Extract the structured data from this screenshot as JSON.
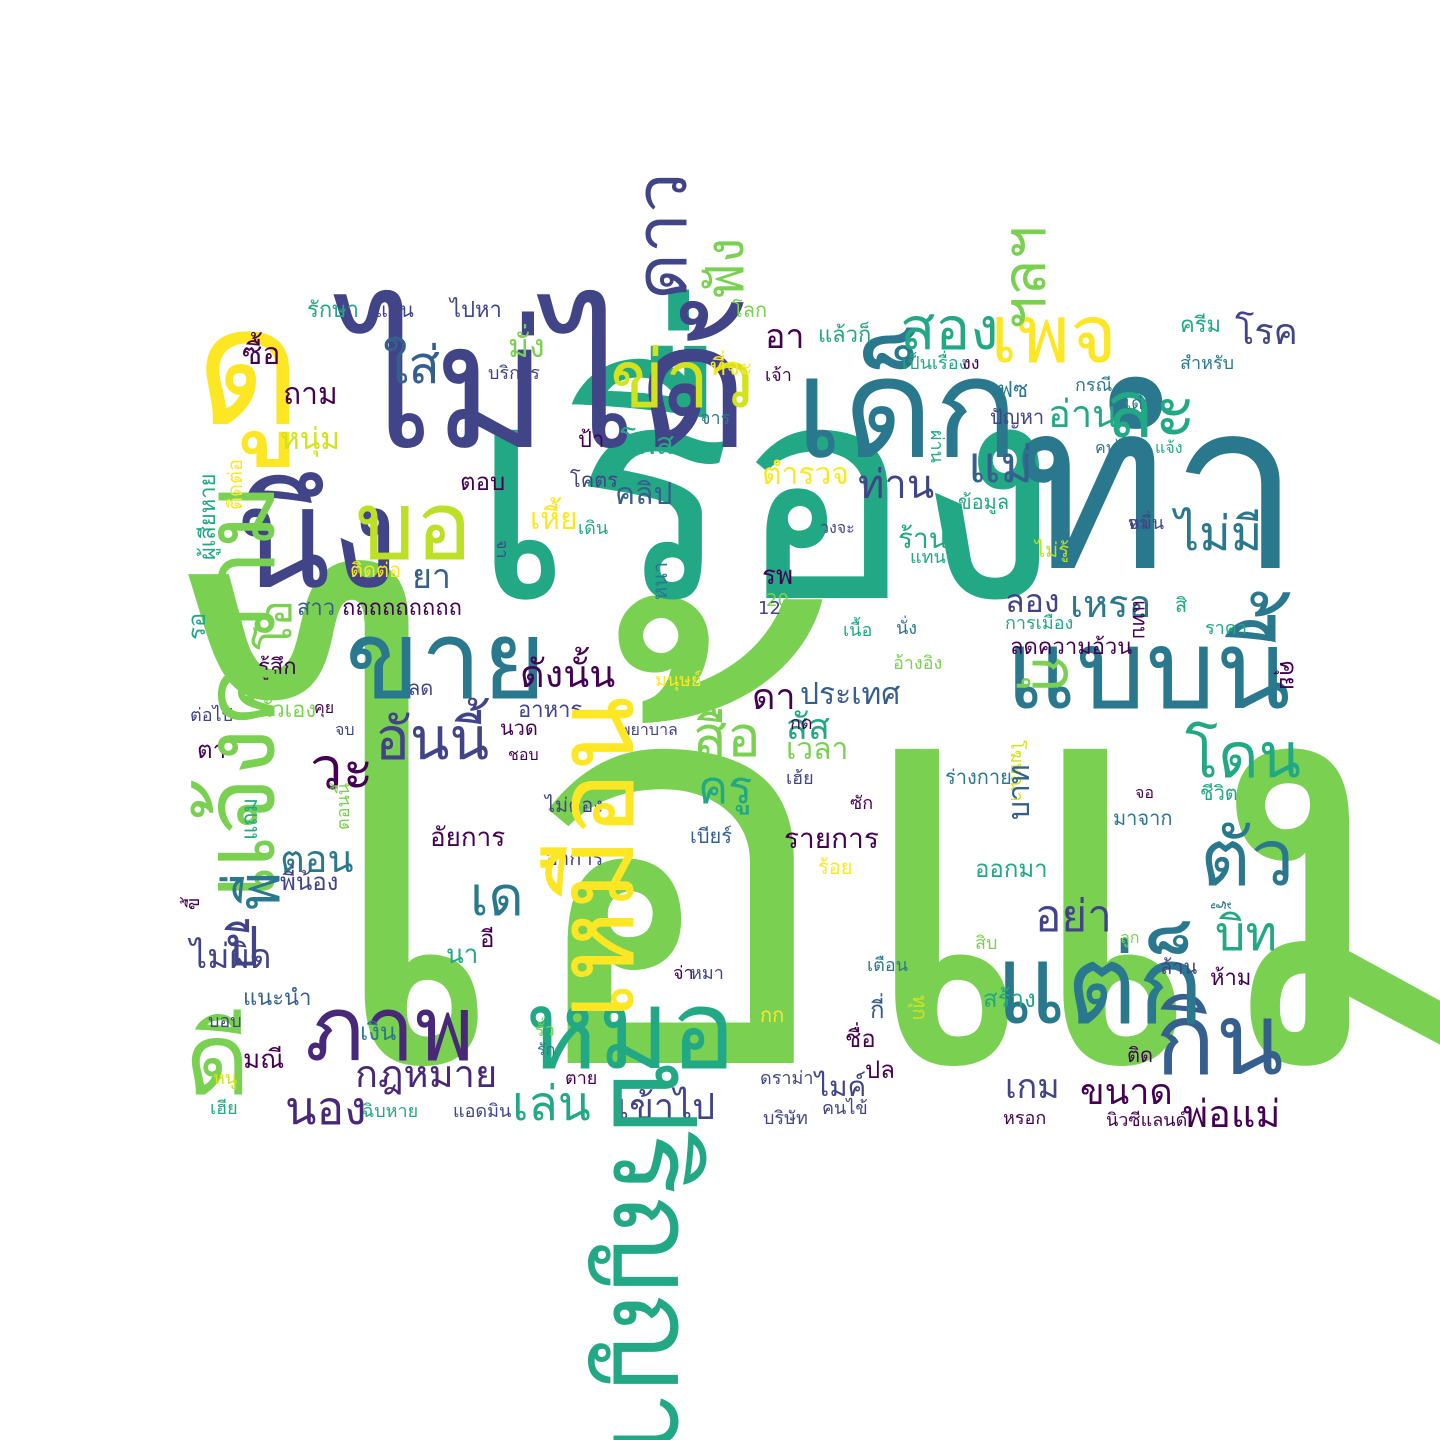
{
  "words": [
    {
      "text": "ไอ้แม่ง",
      "color": "#7ad151"
    },
    {
      "text": "เรื่อง",
      "color": "#22a884"
    },
    {
      "text": "ทำ",
      "color": "#2a788e"
    },
    {
      "text": "ไม่ได้",
      "color": "#414487"
    },
    {
      "text": "ดู",
      "color": "#fde725"
    },
    {
      "text": "เด็ก",
      "color": "#2a788e"
    },
    {
      "text": "นึง",
      "color": "#414487"
    },
    {
      "text": "ละ",
      "color": "#22a884"
    },
    {
      "text": "บอ",
      "color": "#bddf26"
    },
    {
      "text": "ขาย",
      "color": "#2a788e"
    },
    {
      "text": "ข่าว",
      "color": "#d2e21b"
    },
    {
      "text": "เพจ",
      "color": "#fde725"
    },
    {
      "text": "สอง",
      "color": "#22a884"
    },
    {
      "text": "แบบนี้",
      "color": "#2a788e"
    },
    {
      "text": "กิน",
      "color": "#355f8d"
    },
    {
      "text": "แต่ก็",
      "color": "#2a788e"
    },
    {
      "text": "หมอ",
      "color": "#22a884"
    },
    {
      "text": "ภาพ",
      "color": "#482878"
    },
    {
      "text": "ดี",
      "color": "#7ad151"
    },
    {
      "text": "ตัว",
      "color": "#2a788e"
    },
    {
      "text": "โดน",
      "color": "#22a884"
    },
    {
      "text": "สื่อ",
      "color": "#7ad151"
    },
    {
      "text": "ครู",
      "color": "#22a884"
    },
    {
      "text": "วะ",
      "color": "#440154"
    },
    {
      "text": "อันนี้",
      "color": "#414487"
    },
    {
      "text": "ใส่",
      "color": "#355f8d"
    },
    {
      "text": "แม่",
      "color": "#355f8d"
    },
    {
      "text": "ไม่มี",
      "color": "#2a788e"
    },
    {
      "text": "ท่าน",
      "color": "#414487"
    },
    {
      "text": "อ่าน",
      "color": "#22a884"
    },
    {
      "text": "เหรอ",
      "color": "#2a788e"
    },
    {
      "text": "บิท",
      "color": "#22a884"
    },
    {
      "text": "อย่า",
      "color": "#414487"
    },
    {
      "text": "เล่น",
      "color": "#22a884"
    },
    {
      "text": "นอง",
      "color": "#482878"
    },
    {
      "text": "เข้าไป",
      "color": "#414487"
    },
    {
      "text": "พ่อแม่",
      "color": "#440154"
    },
    {
      "text": "กฎหมาย",
      "color": "#482878"
    },
    {
      "text": "ขนาด",
      "color": "#440154"
    },
    {
      "text": "เกม",
      "color": "#414487"
    },
    {
      "text": "เด",
      "color": "#2a788e"
    },
    {
      "text": "ปี",
      "color": "#414487"
    },
    {
      "text": "ตอน",
      "color": "#2a788e"
    },
    {
      "text": "ดังนั้น",
      "color": "#440154"
    },
    {
      "text": "คลิป",
      "color": "#355f8d"
    },
    {
      "text": "ยา",
      "color": "#355f8d"
    },
    {
      "text": "ถาม",
      "color": "#440154"
    },
    {
      "text": "หนุ่ม",
      "color": "#d2e21b"
    },
    {
      "text": "มั่ง",
      "color": "#7ad151"
    },
    {
      "text": "อา",
      "color": "#440154"
    },
    {
      "text": "ตำรวจ",
      "color": "#fde725"
    },
    {
      "text": "ลอง",
      "color": "#414487"
    },
    {
      "text": "สัส",
      "color": "#22a884"
    },
    {
      "text": "ประเทศ",
      "color": "#355f8d"
    },
    {
      "text": "ดา",
      "color": "#440154"
    },
    {
      "text": "เวลา",
      "color": "#7ad151"
    },
    {
      "text": "รายการ",
      "color": "#440154"
    },
    {
      "text": "ซื้อ",
      "color": "#440154"
    },
    {
      "text": "รักษา",
      "color": "#22a884"
    },
    {
      "text": "แสน",
      "color": "#414487"
    },
    {
      "text": "ไปหา",
      "color": "#414487"
    },
    {
      "text": "โลก",
      "color": "#7ad151"
    },
    {
      "text": "แล้วก็",
      "color": "#22a884"
    },
    {
      "text": "ครีม",
      "color": "#22a884"
    },
    {
      "text": "โรค",
      "color": "#414487"
    },
    {
      "text": "สำหรับ",
      "color": "#2a788e"
    },
    {
      "text": "เป็นเรื่อง",
      "color": "#22a884"
    },
    {
      "text": "งง",
      "color": "#440154"
    },
    {
      "text": "บริการ",
      "color": "#414487"
    },
    {
      "text": "ที่จะ",
      "color": "#fde725"
    },
    {
      "text": "เจ้า",
      "color": "#440154"
    },
    {
      "text": "เฟซ",
      "color": "#2a788e"
    },
    {
      "text": "กรณี",
      "color": "#2a788e"
    },
    {
      "text": "ปัญหา",
      "color": "#414487"
    },
    {
      "text": "คนไทย",
      "color": "#2a788e"
    },
    {
      "text": "แจ้ง",
      "color": "#22a884"
    },
    {
      "text": "จาร",
      "color": "#2a788e"
    },
    {
      "text": "ป้า",
      "color": "#440154"
    },
    {
      "text": "โพส",
      "color": "#22a884"
    },
    {
      "text": "ตอบ",
      "color": "#440154"
    },
    {
      "text": "โคตร",
      "color": "#414487"
    },
    {
      "text": "เหี้ย",
      "color": "#fde725"
    },
    {
      "text": "เดิน",
      "color": "#22a884"
    },
    {
      "text": "วงจะ",
      "color": "#414487"
    },
    {
      "text": "ข้อมูล",
      "color": "#22a884"
    },
    {
      "text": "ร้าน",
      "color": "#22a884"
    },
    {
      "text": "แทน",
      "color": "#22a884"
    },
    {
      "text": "ไม่รู้",
      "color": "#bddf26"
    },
    {
      "text": "หมื่น",
      "color": "#414487"
    },
    {
      "text": "จา",
      "color": "#414487"
    },
    {
      "text": "สิ",
      "color": "#22a884"
    },
    {
      "text": "ราคา",
      "color": "#22a884"
    },
    {
      "text": "ผู้เสียหาย",
      "color": "#22a884"
    },
    {
      "text": "ติดต่อ",
      "color": "#fde725"
    },
    {
      "text": "รอ",
      "color": "#22a884"
    },
    {
      "text": "แทบ",
      "color": "#440154"
    },
    {
      "text": "สาว",
      "color": "#355f8d"
    },
    {
      "text": "ถถถถถถถถถ",
      "color": "#440154"
    },
    {
      "text": "รพ",
      "color": "#440154"
    },
    {
      "text": "หนา",
      "color": "#2a788e"
    },
    {
      "text": "20",
      "color": "#7ad151"
    },
    {
      "text": "12",
      "color": "#414487"
    },
    {
      "text": "เนื้อ",
      "color": "#22a884"
    },
    {
      "text": "นั่ง",
      "color": "#2a788e"
    },
    {
      "text": "การเมือง",
      "color": "#22a884"
    },
    {
      "text": "ลดความอ้วน",
      "color": "#440154"
    },
    {
      "text": "รู้สึก",
      "color": "#440154"
    },
    {
      "text": "ลด",
      "color": "#414487"
    },
    {
      "text": "มนุษย์",
      "color": "#fde725"
    },
    {
      "text": "อ้างอิง",
      "color": "#7ad151"
    },
    {
      "text": "โฆษณา",
      "color": "#d2e21b"
    },
    {
      "text": "ตัวเอง",
      "color": "#7ad151"
    },
    {
      "text": "คุย",
      "color": "#440154"
    },
    {
      "text": "จบ",
      "color": "#414487"
    },
    {
      "text": "อาหาร",
      "color": "#414487"
    },
    {
      "text": "นวด",
      "color": "#440154"
    },
    {
      "text": "พยาบาล",
      "color": "#414487"
    },
    {
      "text": "กด",
      "color": "#440154"
    },
    {
      "text": "ต่อไป",
      "color": "#414487"
    },
    {
      "text": "ตา",
      "color": "#440154"
    },
    {
      "text": "ชอบ",
      "color": "#440154"
    },
    {
      "text": "เฮ้ย",
      "color": "#414487"
    },
    {
      "text": "ร่างกาย",
      "color": "#2a788e"
    },
    {
      "text": "ชีวิต",
      "color": "#22a884"
    },
    {
      "text": "มาจาก",
      "color": "#2a788e"
    },
    {
      "text": "แถม",
      "color": "#22a884"
    },
    {
      "text": "ไม่ต้อง",
      "color": "#414487"
    },
    {
      "text": "ซัก",
      "color": "#440154"
    },
    {
      "text": "อัยการ",
      "color": "#440154"
    },
    {
      "text": "เบียร์",
      "color": "#355f8d"
    },
    {
      "text": "อาการ",
      "color": "#414487"
    },
    {
      "text": "ร้อย",
      "color": "#fde725"
    },
    {
      "text": "พี่น้อง",
      "color": "#414487"
    },
    {
      "text": "ตอนนี้",
      "color": "#7ad151"
    },
    {
      "text": "ขี้",
      "color": "#440154"
    },
    {
      "text": "ไม่ผิด",
      "color": "#414487"
    },
    {
      "text": "อี",
      "color": "#440154"
    },
    {
      "text": "นา",
      "color": "#22a884"
    },
    {
      "text": "จ่า",
      "color": "#440154"
    },
    {
      "text": "หมา",
      "color": "#414487"
    },
    {
      "text": "เตือน",
      "color": "#2a788e"
    },
    {
      "text": "สิบ",
      "color": "#7ad151"
    },
    {
      "text": "สร้าง",
      "color": "#22a884"
    },
    {
      "text": "ล้าน",
      "color": "#414487"
    },
    {
      "text": "ห้าม",
      "color": "#440154"
    },
    {
      "text": "แนะนำ",
      "color": "#355f8d"
    },
    {
      "text": "บอบ",
      "color": "#414487"
    },
    {
      "text": "มณี",
      "color": "#440154"
    },
    {
      "text": "เงิน",
      "color": "#2a788e"
    },
    {
      "text": "รั่ว",
      "color": "#7ad151"
    },
    {
      "text": "รัก",
      "color": "#2a788e"
    },
    {
      "text": "กก",
      "color": "#fde725"
    },
    {
      "text": "ชื่อ",
      "color": "#440154"
    },
    {
      "text": "กี่",
      "color": "#355f8d"
    },
    {
      "text": "ปล",
      "color": "#440154"
    },
    {
      "text": "ติด",
      "color": "#440154"
    },
    {
      "text": "หนู",
      "color": "#d2e21b"
    },
    {
      "text": "ตาย",
      "color": "#440154"
    },
    {
      "text": "ดราม่า",
      "color": "#414487"
    },
    {
      "text": "ไมค์",
      "color": "#414487"
    },
    {
      "text": "เฮีย",
      "color": "#22a884"
    },
    {
      "text": "ฉิบหาย",
      "color": "#22a884"
    },
    {
      "text": "แอดมิน",
      "color": "#414487"
    },
    {
      "text": "บริษัท",
      "color": "#414487"
    },
    {
      "text": "คนไข้",
      "color": "#414487"
    },
    {
      "text": "หรอก",
      "color": "#440154"
    },
    {
      "text": "นิวซีแลนด์",
      "color": "#440154"
    },
    {
      "text": "แจ้งความ",
      "color": "#7ad151"
    },
    {
      "text": "ผ่าน",
      "color": "#22a884"
    },
    {
      "text": "บาท",
      "color": "#355f8d"
    },
    {
      "text": "ทุก",
      "color": "#d2e21b"
    },
    {
      "text": "พี่",
      "color": "#2a788e"
    },
    {
      "text": "เด๋ว",
      "color": "#2a788e"
    },
    {
      "text": "โอ",
      "color": "#7ad151"
    },
    {
      "text": "ลูก",
      "color": "#7ad151"
    },
    {
      "text": "รู้",
      "color": "#2a788e"
    },
    {
      "text": "จอ",
      "color": "#440154"
    },
    {
      "text": "กุ",
      "color": "#7ad151"
    },
    {
      "text": "ดาว",
      "color": "#414487"
    },
    {
      "text": "ฟัง",
      "color": "#7ad151"
    },
    {
      "text": "ฯลฯ",
      "color": "#7ad151"
    },
    {
      "text": "ปริญญา",
      "color": "#22a884"
    },
    {
      "text": "ออกมา",
      "color": "#22a884"
    },
    {
      "text": "เหมือน",
      "color": "#fde725"
    }
  ]
}
